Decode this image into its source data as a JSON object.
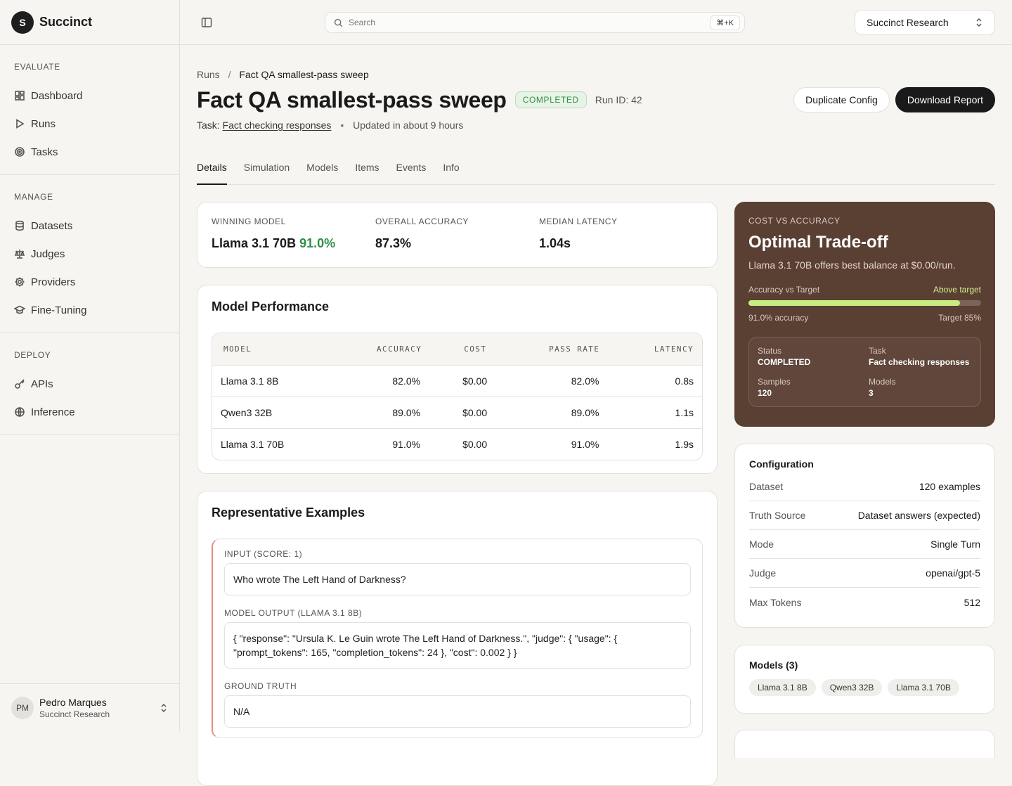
{
  "brand": {
    "logo_letter": "S",
    "name": "Succinct"
  },
  "sidebar": {
    "sections": [
      {
        "title": "EVALUATE",
        "items": [
          {
            "label": "Dashboard",
            "icon": "dashboard-icon"
          },
          {
            "label": "Runs",
            "icon": "play-icon"
          },
          {
            "label": "Tasks",
            "icon": "target-icon"
          }
        ]
      },
      {
        "title": "MANAGE",
        "items": [
          {
            "label": "Datasets",
            "icon": "database-icon"
          },
          {
            "label": "Judges",
            "icon": "scale-icon"
          },
          {
            "label": "Providers",
            "icon": "gear-icon"
          },
          {
            "label": "Fine-Tuning",
            "icon": "graduation-cap-icon"
          }
        ]
      },
      {
        "title": "DEPLOY",
        "items": [
          {
            "label": "APIs",
            "icon": "key-icon"
          },
          {
            "label": "Inference",
            "icon": "globe-icon"
          }
        ]
      }
    ]
  },
  "user": {
    "initials": "PM",
    "name": "Pedro Marques",
    "org": "Succinct Research"
  },
  "topbar": {
    "search_placeholder": "Search",
    "shortcut": "⌘+K",
    "org": "Succinct Research"
  },
  "page": {
    "breadcrumb": {
      "parent": "Runs",
      "separator": "/",
      "current": "Fact QA smallest-pass sweep"
    },
    "title": "Fact QA smallest-pass sweep",
    "status": "COMPLETED",
    "run_id": "Run ID: 42",
    "task_prefix": "Task:",
    "task": "Fact checking responses",
    "updated": "Updated in about 9 hours",
    "duplicate_label": "Duplicate Config",
    "download_label": "Download Report",
    "tabs": [
      "Details",
      "Simulation",
      "Models",
      "Items",
      "Events",
      "Info"
    ]
  },
  "stats": {
    "winning_label": "WINNING MODEL",
    "winning_model": "Llama 3.1 70B",
    "winning_pct": "91.0%",
    "accuracy_label": "OVERALL ACCURACY",
    "accuracy": "87.3%",
    "latency_label": "MEDIAN LATENCY",
    "latency": "1.04s"
  },
  "performance": {
    "title": "Model Performance",
    "headers": [
      "MODEL",
      "ACCURACY",
      "COST",
      "PASS RATE",
      "LATENCY"
    ],
    "rows": [
      [
        "Llama 3.1 8B",
        "82.0%",
        "$0.00",
        "82.0%",
        "0.8s"
      ],
      [
        "Qwen3 32B",
        "89.0%",
        "$0.00",
        "89.0%",
        "1.1s"
      ],
      [
        "Llama 3.1 70B",
        "91.0%",
        "$0.00",
        "91.0%",
        "1.9s"
      ]
    ]
  },
  "examples": {
    "title": "Representative Examples",
    "input_label": "INPUT (SCORE: 1)",
    "input": "Who wrote The Left Hand of Darkness?",
    "output_label": "MODEL OUTPUT (LLAMA 3.1 8B)",
    "output": "{ \"response\": \"Ursula K. Le Guin wrote The Left Hand of Darkness.\", \"judge\": { \"usage\": { \"prompt_tokens\": 165, \"completion_tokens\": 24 }, \"cost\": 0.002 } }",
    "truth_label": "GROUND TRUTH",
    "truth": "N/A"
  },
  "tradeoff": {
    "label": "COST VS ACCURACY",
    "title": "Optimal Trade-off",
    "subtitle": "Llama 3.1 70B offers best balance at $0.00/run.",
    "bar_label": "Accuracy vs Target",
    "bar_status": "Above target",
    "bar_value": 0.91,
    "accuracy_text": "91.0% accuracy",
    "target_text": "Target 85%",
    "grid": [
      {
        "k": "Status",
        "v": "COMPLETED"
      },
      {
        "k": "Task",
        "v": "Fact checking responses"
      },
      {
        "k": "Samples",
        "v": "120"
      },
      {
        "k": "Models",
        "v": "3"
      }
    ]
  },
  "config": {
    "title": "Configuration",
    "rows": [
      {
        "k": "Dataset",
        "v": "120 examples"
      },
      {
        "k": "Truth Source",
        "v": "Dataset answers (expected)"
      },
      {
        "k": "Mode",
        "v": "Single Turn"
      },
      {
        "k": "Judge",
        "v": "openai/gpt-5"
      },
      {
        "k": "Max Tokens",
        "v": "512"
      }
    ]
  },
  "models": {
    "title": "Models (3)",
    "chips": [
      "Llama 3.1 8B",
      "Qwen3 32B",
      "Llama 3.1 70B"
    ]
  },
  "colors": {
    "accent_green": "#2f8f47",
    "dark_card": "#5a3f33",
    "bar_fill": "#c7ec82"
  }
}
